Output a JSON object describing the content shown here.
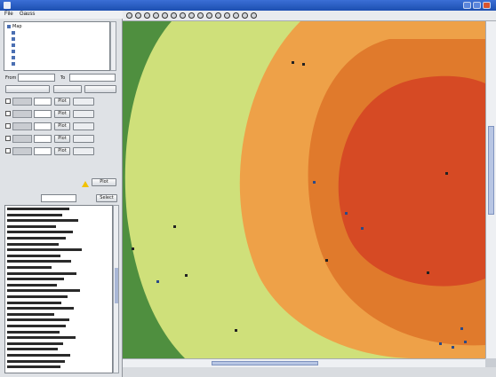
{
  "window": {
    "title": "",
    "colors": {
      "titlebar": "#1c4fb0",
      "close": "#d9542f"
    }
  },
  "menu": {
    "file": "File",
    "second": "Gauss"
  },
  "tree": {
    "items": [
      {
        "label": "Map"
      },
      {
        "label": ""
      },
      {
        "label": ""
      },
      {
        "label": ""
      },
      {
        "label": ""
      },
      {
        "label": ""
      },
      {
        "label": ""
      }
    ]
  },
  "controls": {
    "from_label": "From",
    "from_value": "",
    "to_label": "To",
    "to_value": "",
    "button_left": "",
    "button_mid": "",
    "button_right": "",
    "plot_label": "Plot",
    "results_label": "",
    "results_button": "Select"
  },
  "gauges": [
    {
      "name": "",
      "value": "",
      "button": "Plot",
      "disabled_button": ""
    },
    {
      "name": "",
      "value": "",
      "button": "Plot",
      "disabled_button": ""
    },
    {
      "name": "",
      "value": "",
      "button": "Plot",
      "disabled_button": ""
    },
    {
      "name": "",
      "value": "",
      "button": "Plot",
      "disabled_button": ""
    },
    {
      "name": "",
      "value": "",
      "button": "Plot",
      "disabled_button": ""
    }
  ],
  "results": {
    "row_count": 28
  },
  "map": {
    "zones": [
      {
        "name": "outer",
        "color": "#cfe07a"
      },
      {
        "name": "light-orange",
        "color": "#eea148"
      },
      {
        "name": "orange",
        "color": "#e07a2c"
      },
      {
        "name": "core",
        "color": "#d64a24"
      }
    ],
    "background_color": "#4f8f3f"
  }
}
